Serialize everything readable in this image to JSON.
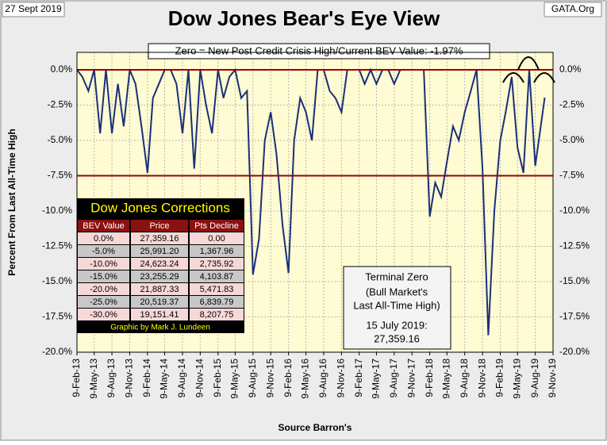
{
  "chart_data": {
    "type": "line",
    "title": "Dow Jones Bear's Eye View",
    "date": "27 Sept 2019",
    "source_tag": "GATA.Org",
    "banner": "Zero = New Post Credit Crisis High/Current BEV Value:  -1.97%",
    "y_label": "Percent From Last All-Time High",
    "x_label": "Source Barron's",
    "x": [
      "2013-02-09",
      "2013-03-09",
      "2013-04-09",
      "2013-05-09",
      "2013-06-09",
      "2013-07-09",
      "2013-08-09",
      "2013-09-09",
      "2013-10-09",
      "2013-11-09",
      "2013-12-09",
      "2014-01-09",
      "2014-02-09",
      "2014-03-09",
      "2014-04-09",
      "2014-05-09",
      "2014-06-09",
      "2014-07-09",
      "2014-08-09",
      "2014-09-09",
      "2014-10-09",
      "2014-11-09",
      "2014-12-09",
      "2015-01-09",
      "2015-02-09",
      "2015-03-09",
      "2015-04-09",
      "2015-05-09",
      "2015-06-09",
      "2015-07-09",
      "2015-08-09",
      "2015-09-09",
      "2015-10-09",
      "2015-11-09",
      "2015-12-09",
      "2016-01-09",
      "2016-02-09",
      "2016-03-09",
      "2016-04-09",
      "2016-05-09",
      "2016-06-09",
      "2016-07-09",
      "2016-08-09",
      "2016-09-09",
      "2016-10-09",
      "2016-11-09",
      "2016-12-09",
      "2017-01-09",
      "2017-02-09",
      "2017-03-09",
      "2017-04-09",
      "2017-05-09",
      "2017-06-09",
      "2017-07-09",
      "2017-08-09",
      "2017-09-09",
      "2017-10-09",
      "2017-11-09",
      "2017-12-09",
      "2018-01-09",
      "2018-02-09",
      "2018-03-09",
      "2018-04-09",
      "2018-05-09",
      "2018-06-09",
      "2018-07-09",
      "2018-08-09",
      "2018-09-09",
      "2018-10-09",
      "2018-11-09",
      "2018-12-09",
      "2019-01-09",
      "2019-02-09",
      "2019-03-09",
      "2019-04-09",
      "2019-05-09",
      "2019-06-09",
      "2019-07-09",
      "2019-08-09",
      "2019-09-27"
    ],
    "series": [
      {
        "name": "BEV",
        "color": "#1a2f7a",
        "values": [
          0,
          -0.5,
          -1.5,
          0,
          -4.5,
          0,
          -4.5,
          -1,
          -4,
          0,
          -1,
          -4,
          -7.3,
          -2,
          -1,
          0,
          0,
          -1,
          -4.5,
          0,
          -7,
          0,
          -2.5,
          -4.5,
          0,
          -2,
          -0.5,
          0,
          -2,
          -1.5,
          -14.5,
          -12,
          -5,
          -3,
          -6,
          -11,
          -14.4,
          -5,
          -2,
          -3,
          -5,
          0,
          0,
          -1.5,
          -2,
          -3,
          0,
          0,
          0,
          -1,
          0,
          -1,
          0,
          0,
          -1,
          0,
          0,
          0,
          0,
          0,
          -10.4,
          -8,
          -9,
          -6.5,
          -4,
          -5,
          -3,
          -1.5,
          0,
          -7,
          -18.8,
          -10,
          -5,
          -3,
          -0.5,
          -5.5,
          -7.3,
          0,
          -6.8,
          -1.97
        ]
      }
    ],
    "xlim": [
      "2013-02-09",
      "2019-11-09"
    ],
    "xticks": [
      {
        "value": "2013-02-09",
        "label": "9-Feb-13"
      },
      {
        "value": "2013-05-09",
        "label": "9-May-13"
      },
      {
        "value": "2013-08-09",
        "label": "9-Aug-13"
      },
      {
        "value": "2013-11-09",
        "label": "9-Nov-13"
      },
      {
        "value": "2014-02-09",
        "label": "9-Feb-14"
      },
      {
        "value": "2014-05-09",
        "label": "9-May-14"
      },
      {
        "value": "2014-08-09",
        "label": "9-Aug-14"
      },
      {
        "value": "2014-11-09",
        "label": "9-Nov-14"
      },
      {
        "value": "2015-02-09",
        "label": "9-Feb-15"
      },
      {
        "value": "2015-05-09",
        "label": "9-May-15"
      },
      {
        "value": "2015-08-09",
        "label": "9-Aug-15"
      },
      {
        "value": "2015-11-09",
        "label": "9-Nov-15"
      },
      {
        "value": "2016-02-09",
        "label": "9-Feb-16"
      },
      {
        "value": "2016-05-09",
        "label": "9-May-16"
      },
      {
        "value": "2016-08-09",
        "label": "9-Aug-16"
      },
      {
        "value": "2016-11-09",
        "label": "9-Nov-16"
      },
      {
        "value": "2017-02-09",
        "label": "9-Feb-17"
      },
      {
        "value": "2017-05-09",
        "label": "9-May-17"
      },
      {
        "value": "2017-08-09",
        "label": "9-Aug-17"
      },
      {
        "value": "2017-11-09",
        "label": "9-Nov-17"
      },
      {
        "value": "2018-02-09",
        "label": "9-Feb-18"
      },
      {
        "value": "2018-05-09",
        "label": "9-May-18"
      },
      {
        "value": "2018-08-09",
        "label": "9-Aug-18"
      },
      {
        "value": "2018-11-09",
        "label": "9-Nov-18"
      },
      {
        "value": "2019-02-09",
        "label": "9-Feb-19"
      },
      {
        "value": "2019-05-09",
        "label": "9-May-19"
      },
      {
        "value": "2019-08-09",
        "label": "9-Aug-19"
      },
      {
        "value": "2019-11-09",
        "label": "9-Nov-19"
      }
    ],
    "ylim": [
      -20,
      0
    ],
    "yticks": [
      {
        "value": 0,
        "label": "0.0%"
      },
      {
        "value": -2.5,
        "label": "-2.5%"
      },
      {
        "value": -5,
        "label": "-5.0%"
      },
      {
        "value": -7.5,
        "label": "-7.5%"
      },
      {
        "value": -10,
        "label": "-10.0%"
      },
      {
        "value": -12.5,
        "label": "-12.5%"
      },
      {
        "value": -15,
        "label": "-15.0%"
      },
      {
        "value": -17.5,
        "label": "-17.5%"
      },
      {
        "value": -20,
        "label": "-20.0%"
      }
    ],
    "y2lim": [
      -20,
      0
    ],
    "reference_lines": [
      0,
      -7.5
    ],
    "reference_color": "#a00000",
    "grid": true,
    "table": {
      "title": "Dow Jones Corrections",
      "header": [
        "BEV Value",
        "Price",
        "Pts Decline"
      ],
      "rows": [
        [
          "0.0%",
          "27,359.16",
          "0.00"
        ],
        [
          "-5.0%",
          "25,991.20",
          "1,367.96"
        ],
        [
          "-10.0%",
          "24,623.24",
          "2,735.92"
        ],
        [
          "-15.0%",
          "23,255.29",
          "4,103.87"
        ],
        [
          "-20.0%",
          "21,887.33",
          "5,471.83"
        ],
        [
          "-25.0%",
          "20,519.37",
          "6,839.79"
        ],
        [
          "-30.0%",
          "19,151.41",
          "8,207.75"
        ]
      ],
      "credit": "Graphic by Mark J. Lundeen"
    },
    "note": [
      "Terminal Zero",
      "(Bull Market's",
      "Last All-Time High)",
      "15 July 2019:",
      "27,359.16"
    ]
  }
}
